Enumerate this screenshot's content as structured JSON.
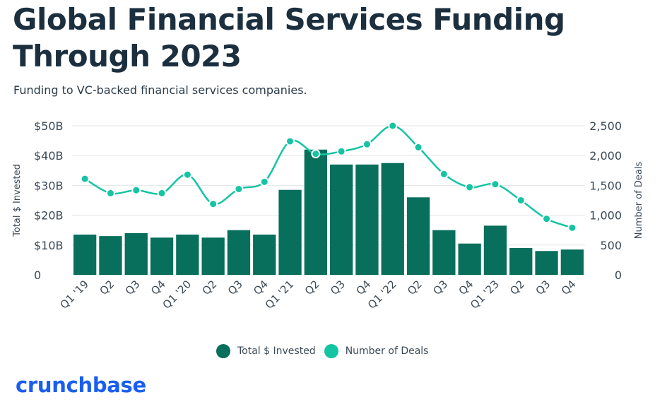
{
  "header": {
    "title": "Global Financial Services Funding Through 2023",
    "subtitle": "Funding to VC-backed financial services companies."
  },
  "brand": {
    "name": "crunchbase",
    "color": "#1a5ef0"
  },
  "colors": {
    "bar": "#076f5c",
    "line": "#14c4a3",
    "grid": "#e3e6ea",
    "text": "#3b4a57"
  },
  "chart_data": {
    "type": "bar",
    "title": "Global Financial Services Funding Through 2023",
    "subtitle": "Funding to VC-backed financial services companies.",
    "categories": [
      "Q1 '19",
      "Q2",
      "Q3",
      "Q4",
      "Q1 '20",
      "Q2",
      "Q3",
      "Q4",
      "Q1 '21",
      "Q2",
      "Q3",
      "Q4",
      "Q1 '22",
      "Q2",
      "Q3",
      "Q4",
      "Q1 '23",
      "Q2",
      "Q3",
      "Q4"
    ],
    "series": [
      {
        "name": "Total $ Invested",
        "type": "bar",
        "axis": "left",
        "values": [
          13.5,
          13.0,
          14.0,
          12.5,
          13.5,
          12.5,
          15.0,
          13.5,
          28.5,
          42.0,
          37.0,
          37.0,
          37.5,
          26.0,
          15.0,
          10.5,
          16.5,
          9.0,
          8.0,
          8.5
        ]
      },
      {
        "name": "Number of Deals",
        "type": "line",
        "axis": "right",
        "values": [
          1610,
          1370,
          1420,
          1370,
          1680,
          1190,
          1440,
          1560,
          2240,
          2030,
          2070,
          2190,
          2500,
          2140,
          1690,
          1470,
          1520,
          1250,
          940,
          790
        ]
      }
    ],
    "ylabel": "Total $ Invested",
    "y2label": "Number of Deals",
    "ylim": [
      0,
      50
    ],
    "y2lim": [
      0,
      2500
    ],
    "yticks": [
      "0",
      "$10B",
      "$20B",
      "$30B",
      "$40B",
      "$50B"
    ],
    "y2ticks": [
      "0",
      "500",
      "1,000",
      "1,500",
      "2,000",
      "2,500"
    ],
    "legend": [
      "Total $ Invested",
      "Number of Deals"
    ],
    "legend_position": "bottom-center",
    "grid": true
  }
}
